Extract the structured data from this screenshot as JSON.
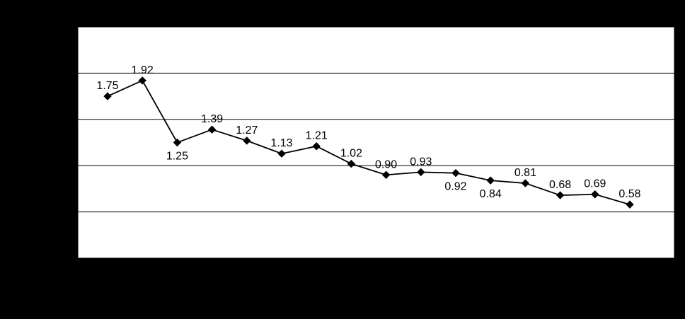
{
  "page": {
    "background_color": "#000000"
  },
  "chart_data": {
    "type": "line",
    "title": "",
    "xlabel": "",
    "ylabel": "",
    "values": [
      1.75,
      1.92,
      1.25,
      1.39,
      1.27,
      1.13,
      1.21,
      1.02,
      0.9,
      0.93,
      0.92,
      0.84,
      0.81,
      0.68,
      0.69,
      0.58
    ],
    "data_labels": [
      "1.75",
      "1.92",
      "1.25",
      "1.39",
      "1.27",
      "1.13",
      "1.21",
      "1.02",
      "0.90",
      "0.93",
      "0.92",
      "0.84",
      "0.81",
      "0.68",
      "0.69",
      "0.58"
    ],
    "label_positions": [
      "above",
      "above",
      "below",
      "above",
      "above",
      "above",
      "above",
      "above",
      "above",
      "above",
      "below",
      "below",
      "above",
      "above",
      "above",
      "above"
    ],
    "ylim": [
      0,
      2.5
    ],
    "gridline_interval": 0.5,
    "grid": true,
    "legend": "none",
    "marker": "diamond",
    "line_color": "#000000",
    "marker_color": "#000000",
    "gridline_color": "#000000",
    "plot_background": "#ffffff",
    "plot_border_color": "#000000",
    "label_color": "#000000"
  }
}
